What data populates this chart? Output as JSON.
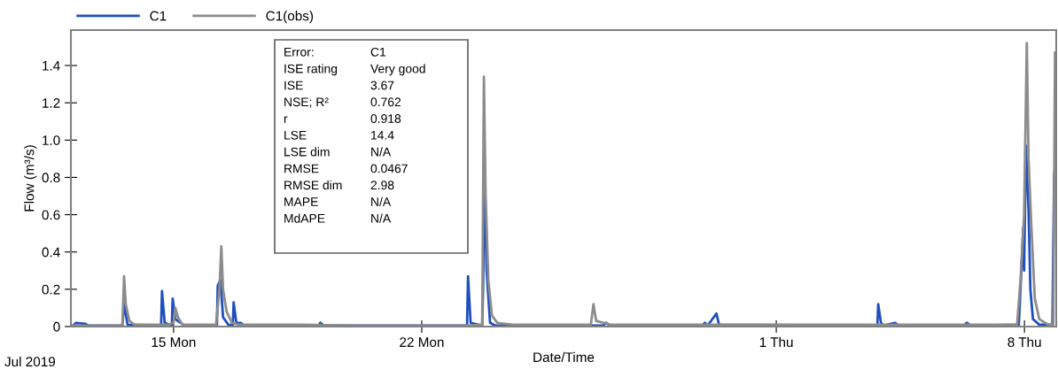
{
  "chart_data": {
    "type": "line",
    "xlabel": "Date/Time",
    "ylabel": "Flow (m³/s)",
    "xlim": [
      "2019-07-12T02:30",
      "2019-08-08T21:30"
    ],
    "xticks": [
      {
        "value": "2019-07-15",
        "label": "15 Mon"
      },
      {
        "value": "2019-07-22",
        "label": "22 Mon"
      },
      {
        "value": "2019-08-01",
        "label": "1 Thu"
      },
      {
        "value": "2019-08-08",
        "label": "8 Thu"
      }
    ],
    "ylim": [
      0,
      1.59
    ],
    "yticks": [
      0,
      0.2,
      0.4,
      0.6,
      0.8,
      {
        "value": 1,
        "label": "1.0"
      },
      1.2,
      1.4
    ],
    "grid": false,
    "legend": "top left",
    "marker": "none",
    "line_style": "solid",
    "annotations": [
      "Error:",
      "C1",
      "ISE rating",
      "Very good",
      "ISE",
      "3.67",
      "NSE; R²",
      "0.762",
      "r",
      "0.918",
      "LSE",
      "14.4",
      "LSE dim",
      "N/A",
      "RMSE",
      "0.0467",
      "RMSE dim",
      "2.98",
      "MAPE",
      "N/A",
      "MdAPE",
      "N/A",
      "Jul 2019"
    ],
    "series": [
      {
        "name": "C1",
        "color": "#1f4fbf",
        "x": [
          "2019-07-12T04:00",
          "2019-07-12T06:00",
          "2019-07-12T12:00",
          "2019-07-12T14:30",
          "2019-07-13T13:20",
          "2019-07-13T14:30",
          "2019-07-13T16:50",
          "2019-07-14T15:35",
          "2019-07-14T16:10",
          "2019-07-14T18:00",
          "2019-07-14T22:50",
          "2019-07-14T23:25",
          "2019-07-15T01:10",
          "2019-07-15T04:50",
          "2019-07-15T07:10",
          "2019-07-16T05:20",
          "2019-07-16T05:55",
          "2019-07-16T07:45",
          "2019-07-16T09:30",
          "2019-07-16T13:05",
          "2019-07-16T16:05",
          "2019-07-16T16:40",
          "2019-07-16T18:30",
          "2019-07-16T21:30",
          "2019-07-16T23:55",
          "2019-07-19T02:10",
          "2019-07-19T03:20",
          "2019-07-19T05:45",
          "2019-07-23T06:40",
          "2019-07-23T07:20",
          "2019-07-23T09:05",
          "2019-07-23T16:55",
          "2019-07-23T17:30",
          "2019-07-23T18:40",
          "2019-07-23T19:55",
          "2019-07-23T22:15",
          "2019-07-24T01:50",
          "2019-07-27T03:00",
          "2019-07-27T04:40",
          "2019-07-27T07:40",
          "2019-07-29T22:00",
          "2019-07-29T23:40",
          "2019-07-30T01:30",
          "2019-07-30T07:30",
          "2019-07-30T09:15",
          "2019-08-03T20:25",
          "2019-08-03T21:00",
          "2019-08-03T22:50",
          "2019-08-04T00:30",
          "2019-08-04T08:25",
          "2019-08-04T10:50",
          "2019-08-06T07:00",
          "2019-08-06T08:55",
          "2019-08-06T11:50",
          "2019-08-07T20:10",
          "2019-08-07T22:00",
          "2019-08-07T23:10",
          "2019-08-07T23:45",
          "2019-08-08T01:00",
          "2019-08-08T02:45",
          "2019-08-08T04:00",
          "2019-08-08T05:45",
          "2019-08-08T10:00",
          "2019-08-08T18:55",
          "2019-08-08T20:05"
        ],
        "values": [
          0.005,
          0.02,
          0.015,
          0.005,
          0.005,
          0.12,
          0.01,
          0.005,
          0.19,
          0.02,
          0.005,
          0.15,
          0.04,
          0.02,
          0.005,
          0.005,
          0.22,
          0.25,
          0.05,
          0.01,
          0.005,
          0.13,
          0.02,
          0.02,
          0.005,
          0.005,
          0.02,
          0.005,
          0.005,
          0.27,
          0.02,
          0.005,
          0.2,
          0.84,
          0.3,
          0.02,
          0.005,
          0.005,
          0.02,
          0.005,
          0.005,
          0.02,
          0.005,
          0.07,
          0.01,
          0.005,
          0.12,
          0.02,
          0.005,
          0.02,
          0.005,
          0.005,
          0.02,
          0.005,
          0.01,
          0.32,
          0.53,
          0.3,
          0.97,
          0.63,
          0.2,
          0.04,
          0.01,
          0.01,
          0.82
        ]
      },
      {
        "name": "C1(obs)",
        "color": "#8c8c8c",
        "x": [
          "2019-07-12T04:00",
          "2019-07-13T13:20",
          "2019-07-13T14:30",
          "2019-07-13T15:40",
          "2019-07-13T18:05",
          "2019-07-13T21:40",
          "2019-07-14T20:25",
          "2019-07-15T00:00",
          "2019-07-15T01:10",
          "2019-07-15T03:00",
          "2019-07-15T06:00",
          "2019-07-16T04:45",
          "2019-07-16T07:05",
          "2019-07-16T08:20",
          "2019-07-16T09:30",
          "2019-07-16T11:55",
          "2019-07-16T15:30",
          "2019-07-16T20:15",
          "2019-07-18T14:10",
          "2019-07-20T02:05",
          "2019-07-23T06:40",
          "2019-07-23T16:55",
          "2019-07-23T18:05",
          "2019-07-23T19:15",
          "2019-07-23T21:05",
          "2019-07-23T23:30",
          "2019-07-24T03:05",
          "2019-07-24T13:50",
          "2019-07-26T18:30",
          "2019-07-26T20:15",
          "2019-07-26T22:05",
          "2019-07-27T07:40",
          "2019-08-07T19:00",
          "2019-08-07T21:20",
          "2019-08-07T23:45",
          "2019-08-08T01:35",
          "2019-08-08T02:45",
          "2019-08-08T04:35",
          "2019-08-08T07:00",
          "2019-08-08T10:00",
          "2019-08-08T16:00",
          "2019-08-08T19:30",
          "2019-08-08T20:40"
        ],
        "values": [
          0.005,
          0.005,
          0.27,
          0.12,
          0.03,
          0.01,
          0.01,
          0.02,
          0.1,
          0.05,
          0.01,
          0.01,
          0.2,
          0.43,
          0.2,
          0.08,
          0.02,
          0.01,
          0.01,
          0.005,
          0.005,
          0.01,
          1.34,
          0.7,
          0.25,
          0.06,
          0.02,
          0.01,
          0.01,
          0.12,
          0.03,
          0.01,
          0.01,
          0.25,
          0.6,
          1.52,
          0.9,
          0.55,
          0.15,
          0.04,
          0.01,
          0.01,
          1.47
        ]
      }
    ]
  }
}
